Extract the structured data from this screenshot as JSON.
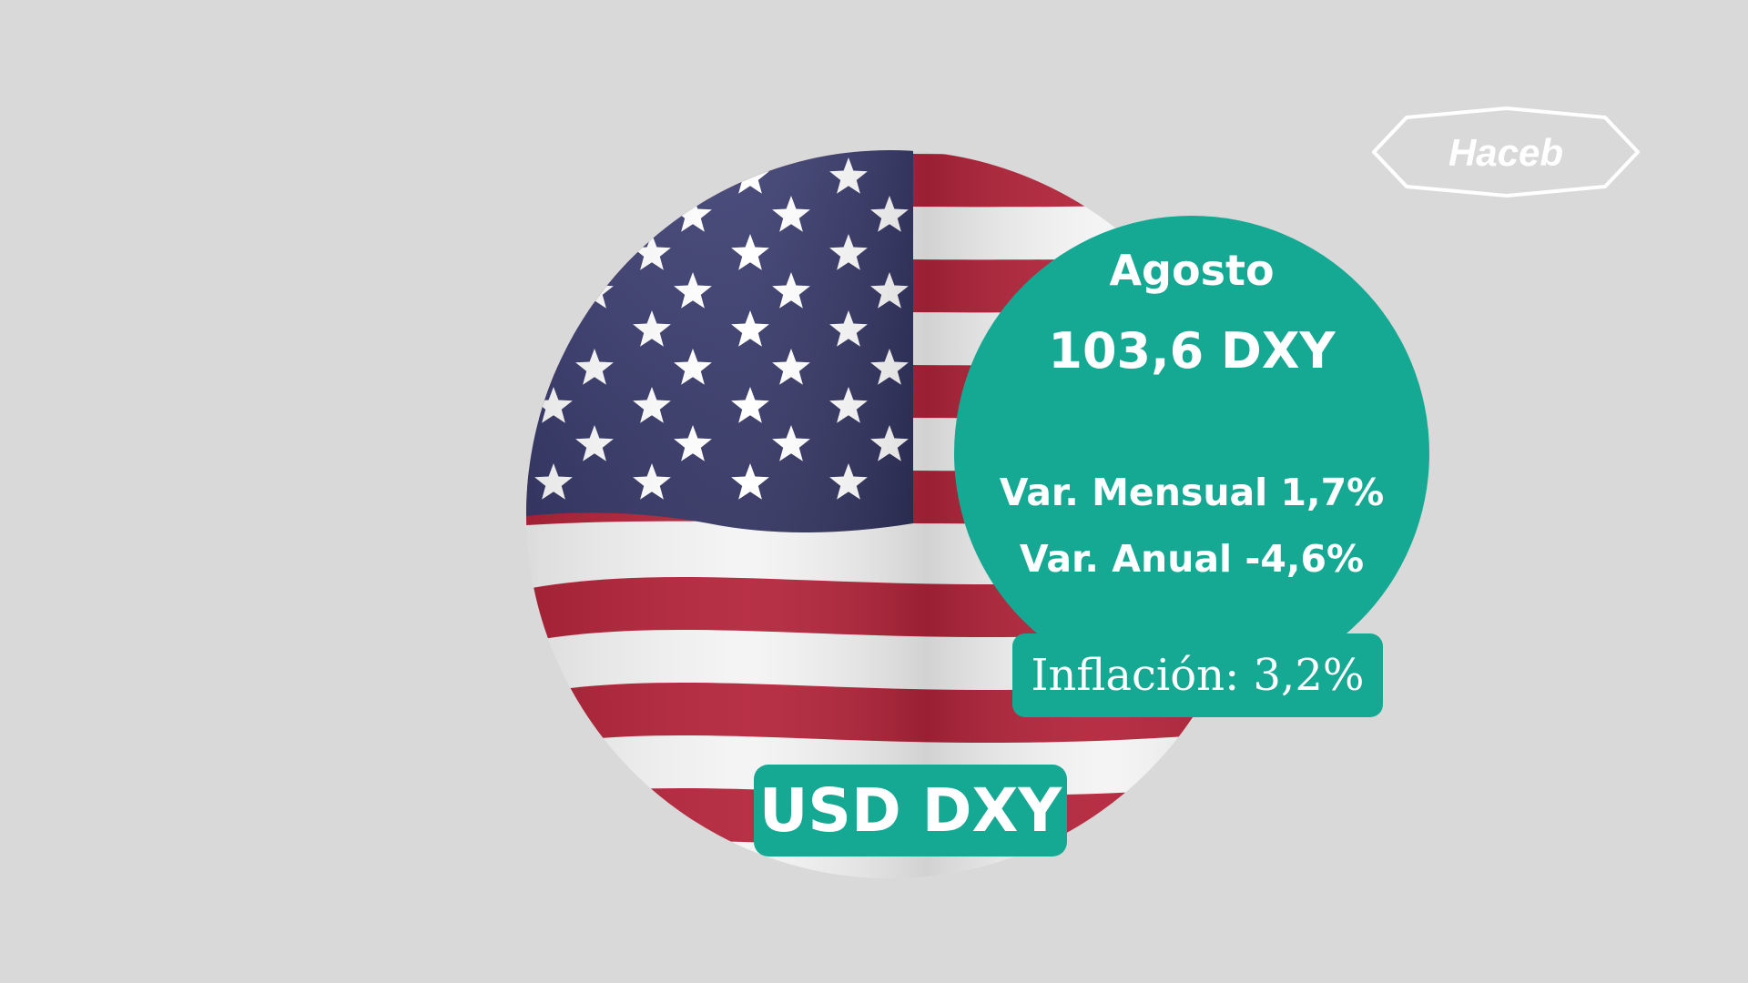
{
  "logo": {
    "text": "Haceb",
    "icon": "haceb-logo"
  },
  "info": {
    "month": "Agosto",
    "value": "103,6 DXY",
    "monthly_change": "Var. Mensual 1,7%",
    "annual_change": "Var. Anual -4,6%"
  },
  "inflation_badge": {
    "label": "Inflación: 3,2%"
  },
  "currency_badge": {
    "label": "USD DXY"
  },
  "colors": {
    "background": "#d9d9d9",
    "accent": "#15a994",
    "text": "#ffffff",
    "flag_blue": "#3a3c6e",
    "flag_red": "#b3243a",
    "flag_white": "#f4f4f4"
  },
  "flag": {
    "icon": "us-flag-image"
  }
}
